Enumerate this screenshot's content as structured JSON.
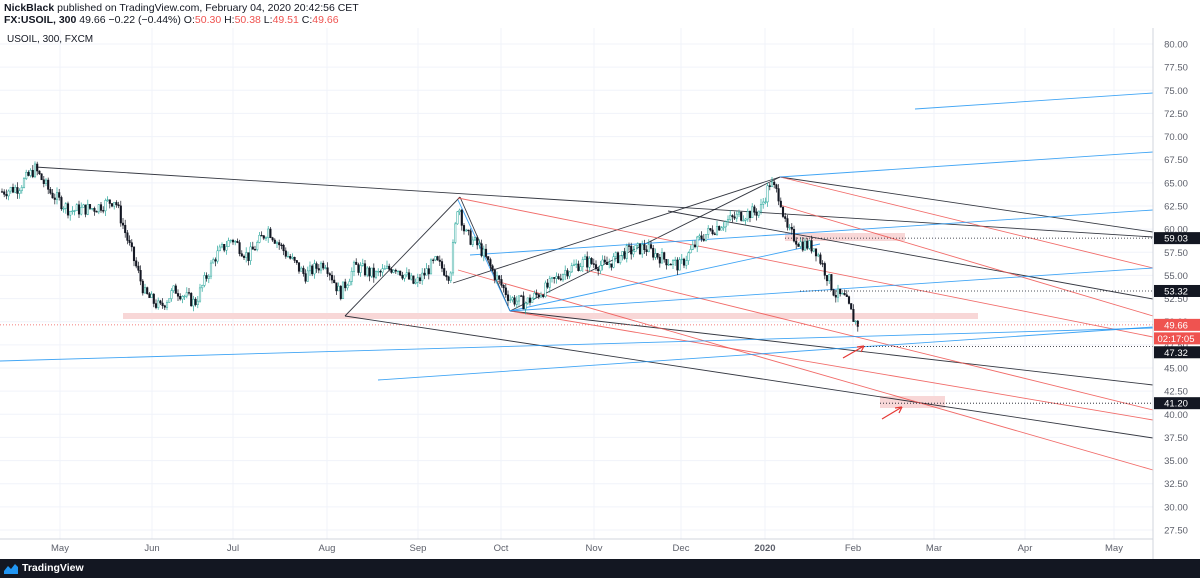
{
  "header": {
    "author": "NickBlack",
    "published": "published on TradingView.com, February 04, 2020 20:42:56 CET",
    "symbol": "FX:USOIL, 300",
    "last": "49.66",
    "change": "−0.22 (−0.44%)",
    "o_label": "O:",
    "o_value": "50.30",
    "h_label": "H:",
    "h_value": "50.38",
    "l_label": "L:",
    "l_value": "49.51",
    "c_label": "C:",
    "c_value": "49.66"
  },
  "pane_label": "USOIL, 300, FXCM",
  "footer": {
    "brand": "TradingView"
  },
  "colors": {
    "up": "#26a69a",
    "down": "#131722",
    "red_line": "#ef5350",
    "blue_line": "#2196f3",
    "black_line": "#131722",
    "zone": "#f8d7d7"
  },
  "chart_data": {
    "type": "candlestick",
    "instrument": "USOIL",
    "timeframe": "300",
    "source": "FXCM",
    "x_ticks": [
      "May",
      "Jun",
      "Jul",
      "Aug",
      "Sep",
      "Oct",
      "Nov",
      "Dec",
      "2020",
      "Feb",
      "Mar",
      "Apr",
      "May"
    ],
    "y_ticks": [
      "80.00",
      "77.50",
      "75.00",
      "72.50",
      "70.00",
      "67.50",
      "65.00",
      "62.50",
      "60.00",
      "57.50",
      "55.00",
      "52.50",
      "50.00",
      "47.50",
      "45.00",
      "42.50",
      "40.00",
      "37.50",
      "35.00",
      "32.50",
      "30.00",
      "27.50"
    ],
    "ylim": [
      26.2,
      81.2
    ],
    "price_path": [
      [
        0,
        64.0
      ],
      [
        18,
        64.5
      ],
      [
        35,
        66.5
      ],
      [
        50,
        64.0
      ],
      [
        70,
        62.0
      ],
      [
        95,
        62.3
      ],
      [
        115,
        63.2
      ],
      [
        130,
        58.0
      ],
      [
        145,
        53.0
      ],
      [
        160,
        51.5
      ],
      [
        175,
        53.5
      ],
      [
        195,
        52.0
      ],
      [
        215,
        57.0
      ],
      [
        232,
        59.0
      ],
      [
        248,
        57.0
      ],
      [
        268,
        60.0
      ],
      [
        285,
        57.5
      ],
      [
        305,
        55.0
      ],
      [
        325,
        56.5
      ],
      [
        340,
        53.0
      ],
      [
        355,
        56.0
      ],
      [
        375,
        55.0
      ],
      [
        395,
        56.0
      ],
      [
        415,
        54.0
      ],
      [
        435,
        56.5
      ],
      [
        450,
        55.0
      ],
      [
        458,
        63.0
      ],
      [
        465,
        59.5
      ],
      [
        480,
        58.0
      ],
      [
        495,
        55.0
      ],
      [
        510,
        52.5
      ],
      [
        525,
        52.0
      ],
      [
        545,
        53.5
      ],
      [
        565,
        55.5
      ],
      [
        585,
        56.5
      ],
      [
        605,
        56.0
      ],
      [
        625,
        57.5
      ],
      [
        645,
        58.0
      ],
      [
        660,
        57.0
      ],
      [
        680,
        56.0
      ],
      [
        700,
        59.0
      ],
      [
        720,
        60.5
      ],
      [
        740,
        61.5
      ],
      [
        760,
        62.0
      ],
      [
        770,
        65.0
      ],
      [
        780,
        63.5
      ],
      [
        786,
        60.0
      ],
      [
        800,
        58.5
      ],
      [
        815,
        58.0
      ],
      [
        825,
        55.5
      ],
      [
        835,
        53.0
      ],
      [
        845,
        52.5
      ],
      [
        855,
        50.0
      ],
      [
        860,
        49.66
      ]
    ],
    "price_labels": [
      {
        "value": "59.03",
        "y": 59.03,
        "style": "dark"
      },
      {
        "value": "53.32",
        "y": 53.32,
        "style": "dark"
      },
      {
        "value": "49.66",
        "y": 49.66,
        "style": "red"
      },
      {
        "value": "02:17:05",
        "y": 48.2,
        "style": "red"
      },
      {
        "value": "47.32",
        "y": 46.7,
        "style": "dark"
      },
      {
        "value": "41.20",
        "y": 41.2,
        "style": "dark"
      }
    ],
    "last_price": 49.66,
    "horizontal_levels": [
      59.03,
      53.32,
      47.32,
      41.2
    ]
  }
}
